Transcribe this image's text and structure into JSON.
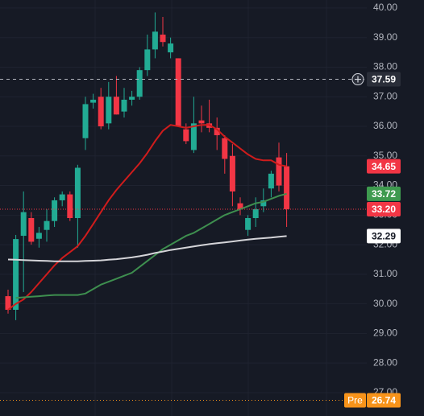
{
  "chart_data": {
    "type": "candlestick",
    "ylim": [
      26.21,
      40.27
    ],
    "yticks": [
      {
        "value": 40,
        "label": "40.00"
      },
      {
        "value": 39,
        "label": "39.00"
      },
      {
        "value": 38,
        "label": "38.00"
      },
      {
        "value": 37,
        "label": "37.00"
      },
      {
        "value": 36,
        "label": "36.00"
      },
      {
        "value": 35,
        "label": "35.00"
      },
      {
        "value": 34,
        "label": "34.00"
      },
      {
        "value": 33,
        "label": "33.00"
      },
      {
        "value": 32,
        "label": "32.00"
      },
      {
        "value": 31,
        "label": "31.00"
      },
      {
        "value": 30,
        "label": "30.00"
      },
      {
        "value": 29,
        "label": "29.00"
      },
      {
        "value": 28,
        "label": "28.00"
      },
      {
        "value": 27,
        "label": "27.00"
      }
    ],
    "grid": true,
    "up_color": "#22ab94",
    "down_color": "#f23645",
    "open": [
      30.26,
      29.8,
      32.3,
      32.9,
      32.2,
      32.5,
      32.8,
      33.5,
      33.7,
      32.9,
      35.6,
      36.8,
      37.0,
      36.1,
      37.0,
      36.5,
      36.9,
      37.0,
      37.9,
      38.6,
      39.1,
      38.5,
      38.3,
      35.9,
      35.2,
      36.2,
      36.1,
      35.95,
      35.6,
      35.0,
      33.4,
      32.5,
      32.9,
      33.3,
      33.9,
      34.95,
      34.65
    ],
    "high": [
      30.48,
      32.33,
      33.8,
      33.1,
      32.6,
      33.2,
      33.6,
      33.8,
      33.8,
      34.7,
      37.0,
      37.1,
      37.3,
      37.5,
      37.7,
      37.3,
      37.2,
      38.0,
      39.1,
      39.85,
      39.7,
      39.0,
      38.3,
      36.1,
      37.0,
      36.7,
      36.9,
      36.3,
      35.7,
      35.4,
      33.6,
      33.0,
      33.6,
      33.9,
      34.5,
      35.45,
      35.1
    ],
    "low": [
      29.67,
      29.45,
      30.4,
      32.0,
      31.9,
      32.1,
      32.6,
      33.3,
      32.8,
      31.9,
      35.2,
      36.6,
      35.9,
      35.9,
      36.4,
      36.3,
      36.7,
      36.9,
      37.7,
      38.3,
      38.7,
      38.3,
      36.0,
      35.4,
      35.1,
      35.8,
      35.8,
      35.2,
      34.4,
      33.3,
      33.0,
      32.3,
      32.6,
      33.1,
      33.6,
      33.8,
      32.6
    ],
    "close": [
      29.8,
      32.19,
      33.1,
      32.1,
      32.4,
      32.8,
      33.5,
      33.7,
      32.9,
      34.6,
      36.75,
      36.9,
      36.0,
      37.0,
      36.4,
      36.9,
      37.0,
      37.9,
      38.6,
      39.2,
      38.85,
      38.8,
      36.0,
      35.5,
      36.1,
      36.1,
      35.95,
      35.7,
      34.9,
      33.8,
      33.2,
      32.9,
      33.2,
      33.5,
      34.4,
      34.0,
      33.2
    ],
    "lines": [
      {
        "color": "#d01c1c",
        "values": [
          29.8,
          30.0,
          30.15,
          30.4,
          30.7,
          31.0,
          31.3,
          31.55,
          31.75,
          31.95,
          32.3,
          32.7,
          33.1,
          33.5,
          33.85,
          34.15,
          34.45,
          34.75,
          35.1,
          35.5,
          35.85,
          36.05,
          36.0,
          35.95,
          36.0,
          36.05,
          36.05,
          35.9,
          35.65,
          35.45,
          35.25,
          35.05,
          34.9,
          34.85,
          34.85,
          34.7,
          34.65
        ]
      },
      {
        "color": "#3e8f4f",
        "values": [
          null,
          30.2,
          30.22,
          30.24,
          30.26,
          30.28,
          30.3,
          30.3,
          30.3,
          30.3,
          30.35,
          30.5,
          30.65,
          30.75,
          30.85,
          30.95,
          31.05,
          31.25,
          31.45,
          31.65,
          31.85,
          32.0,
          32.15,
          32.3,
          32.4,
          32.55,
          32.7,
          32.85,
          33.0,
          33.1,
          33.2,
          33.3,
          33.4,
          33.45,
          33.55,
          33.65,
          33.72
        ]
      },
      {
        "color": "#d4d4d8",
        "values": [
          31.5,
          31.49,
          31.48,
          31.47,
          31.46,
          31.45,
          31.44,
          31.44,
          31.44,
          31.44,
          31.45,
          31.46,
          31.47,
          31.49,
          31.51,
          31.54,
          31.57,
          31.61,
          31.66,
          31.72,
          31.77,
          31.82,
          31.86,
          31.9,
          31.94,
          31.98,
          32.02,
          32.05,
          32.08,
          32.11,
          32.14,
          32.17,
          32.2,
          32.22,
          32.24,
          32.27,
          32.29
        ]
      }
    ],
    "price_labels": [
      {
        "price": 37.59,
        "bg": "#2a2e39",
        "fg": "#ffffff",
        "line": "#b2b5be"
      },
      {
        "price": 34.65,
        "bg": "#f23645",
        "fg": "#ffffff"
      },
      {
        "price": 33.72,
        "bg": "#3e9a4f",
        "fg": "#ffffff"
      },
      {
        "price": {
          "value": 33.2,
          "label": "33.20"
        },
        "bg": "#f23645",
        "fg": "#ffffff",
        "line": "#f23645"
      },
      {
        "price": 32.29,
        "bg": "#ffffff",
        "fg": "#131722"
      },
      {
        "tag": "Pre",
        "price": 26.74,
        "bg": "#f7931a",
        "fg": "#ffffff",
        "line": "#f7931a"
      }
    ]
  }
}
